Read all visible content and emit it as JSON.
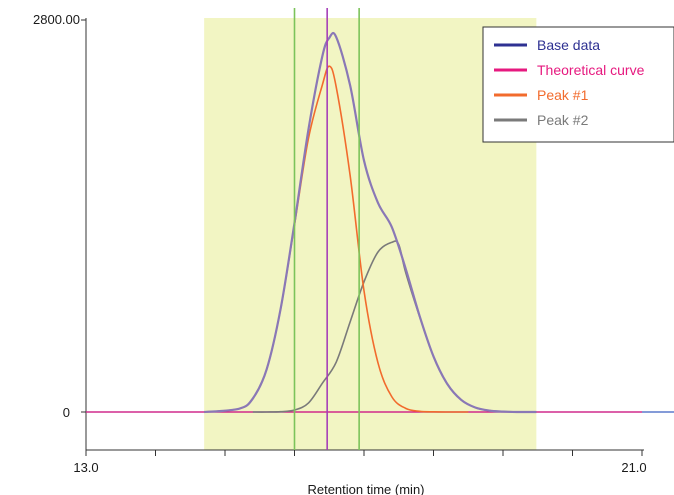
{
  "chart_data": {
    "type": "line",
    "xlabel": "Retention time (min)",
    "ylabel": "",
    "xlim": [
      13.0,
      21.0
    ],
    "ylim": [
      0,
      2800
    ],
    "x_tick_labels": [
      "13.0",
      "21.0"
    ],
    "y_tick_labels": [
      "0",
      "2800.00"
    ],
    "x_minor_ticks": [
      14.0,
      15.0,
      16.0,
      17.0,
      18.0,
      19.0,
      20.0
    ],
    "baseline_value": 0,
    "shaded_region": {
      "x_start": 14.7,
      "x_end": 19.48,
      "color": "#f2f5c3"
    },
    "vertical_markers": [
      {
        "x": 16.0,
        "color": "#7cc35a"
      },
      {
        "x": 16.47,
        "color": "#a640b8"
      },
      {
        "x": 16.93,
        "color": "#7cc35a"
      }
    ],
    "legend_position": "top-right",
    "series": [
      {
        "name": "Base data",
        "color": "#2e3192",
        "x": [
          14.7,
          15.2,
          15.4,
          15.6,
          15.8,
          16.0,
          16.2,
          16.4,
          16.5,
          16.6,
          16.8,
          17.0,
          17.2,
          17.4,
          17.6,
          17.8,
          18.0,
          18.2,
          18.4,
          18.6,
          18.8,
          19.0,
          19.2,
          19.48
        ],
        "y": [
          0,
          23,
          96,
          306,
          736,
          1351,
          2016,
          2540,
          2672,
          2678,
          2334,
          1796,
          1495,
          1321,
          1023,
          686,
          397,
          199,
          86,
          32,
          10,
          3,
          0,
          0
        ]
      },
      {
        "name": "Theoretical curve",
        "color": "#e6197f",
        "x": [
          13.0,
          21.0
        ],
        "y": [
          0,
          0
        ]
      },
      {
        "name": "Peak #1",
        "color": "#f26b2d",
        "x": [
          14.7,
          15.2,
          15.4,
          15.6,
          15.8,
          16.0,
          16.2,
          16.4,
          16.5,
          16.6,
          16.8,
          17.0,
          17.2,
          17.4,
          17.6,
          17.8,
          18.0,
          18.2,
          18.5
        ],
        "y": [
          0,
          23,
          96,
          306,
          734,
          1337,
          1952,
          2335,
          2470,
          2322,
          1691,
          866,
          353,
          109,
          26,
          5,
          1,
          0,
          0
        ]
      },
      {
        "name": "Peak #2",
        "color": "#7a7a7a",
        "x": [
          15.4,
          15.6,
          15.8,
          16.0,
          16.2,
          16.4,
          16.6,
          16.8,
          17.0,
          17.2,
          17.4,
          17.5,
          17.6,
          17.8,
          18.0,
          18.2,
          18.4,
          18.6,
          18.8,
          19.0,
          19.2,
          19.48
        ],
        "y": [
          0,
          0,
          2,
          14,
          64,
          205,
          356,
          643,
          930,
          1142,
          1212,
          1196,
          996,
          681,
          396,
          199,
          86,
          32,
          10,
          3,
          1,
          0
        ]
      }
    ]
  }
}
